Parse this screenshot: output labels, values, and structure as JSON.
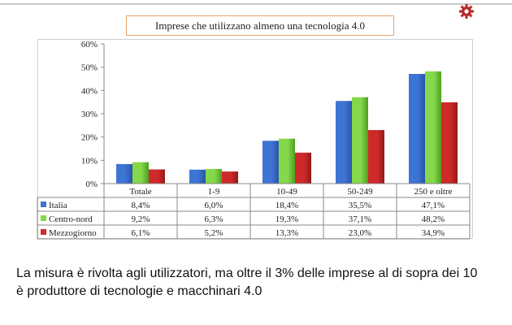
{
  "colors": {
    "italia": "#3e74d4",
    "centro_nord": "#84d84a",
    "mezzogiorno": "#cf2a2a",
    "gear": "#b72a2a"
  },
  "icons": {
    "logo": "gear-icon"
  },
  "caption": {
    "line1": "La misura è rivolta agli utilizzatori, ma oltre il 3% delle imprese al di sopra dei 10",
    "line2": "è produttore di tecnologie e macchinari 4.0"
  },
  "chart_data": {
    "type": "bar",
    "title": "Imprese che utilizzano almeno una tecnologia 4.0",
    "categories": [
      "Totale",
      "1-9",
      "10-49",
      "50-249",
      "250 e oltre"
    ],
    "ylim": [
      0,
      60
    ],
    "yticks": [
      "0%",
      "10%",
      "20%",
      "30%",
      "40%",
      "50%",
      "60%"
    ],
    "grid": false,
    "legend": "table-left",
    "series": [
      {
        "name": "Italia",
        "values": [
          8.4,
          6.0,
          18.4,
          35.5,
          47.1
        ],
        "labels": [
          "8,4%",
          "6,0%",
          "18,4%",
          "35,5%",
          "47,1%"
        ]
      },
      {
        "name": "Centro-nord",
        "values": [
          9.2,
          6.3,
          19.3,
          37.1,
          48.2
        ],
        "labels": [
          "9,2%",
          "6,3%",
          "19,3%",
          "37,1%",
          "48,2%"
        ]
      },
      {
        "name": "Mezzogiorno",
        "values": [
          6.1,
          5.2,
          13.3,
          23.0,
          34.9
        ],
        "labels": [
          "6,1%",
          "5,2%",
          "13,3%",
          "23,0%",
          "34,9%"
        ]
      }
    ]
  }
}
